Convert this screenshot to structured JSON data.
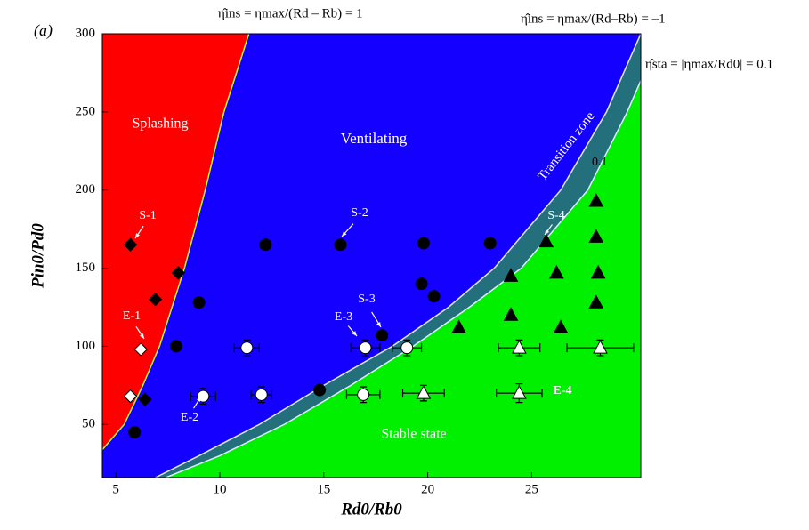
{
  "panel_label": "(a)",
  "chart_data": {
    "type": "scatter",
    "x_label": "Rd0/Rb0",
    "y_label": "Pin0/Pd0",
    "xlim": [
      4.35,
      30.25
    ],
    "ylim": [
      16,
      300
    ],
    "xticks": [
      5,
      10,
      15,
      20,
      25
    ],
    "yticks": [
      50,
      100,
      150,
      200,
      250,
      300
    ],
    "regions": [
      {
        "name": "Ventilating",
        "color": "#1400ff"
      },
      {
        "name": "Splashing",
        "color": "#ff0000"
      },
      {
        "name": "Transition zone",
        "color": "#23707c"
      },
      {
        "name": "Stable state",
        "color": "#00f000"
      }
    ],
    "boundaries": [
      {
        "label": "η̂ins = ηmax/(Rd – Rb) = 1",
        "x": [
          4.36,
          5.4,
          6.3,
          7.1,
          8.3,
          9.3,
          10.2,
          11.4
        ],
        "y": [
          34,
          50,
          75,
          100,
          150,
          200,
          250,
          300
        ]
      },
      {
        "label": "η̂ins = ηmax/(Rd–Rb) = –1",
        "x": [
          6.9,
          9,
          11.9,
          15,
          18.3,
          21,
          23.2,
          26.4,
          28.6,
          30.25
        ],
        "y": [
          16,
          30,
          50,
          75,
          100,
          125,
          150,
          200,
          250,
          300
        ]
      },
      {
        "label": "η̂sta = |ηmax/Rd0| = 0.1",
        "x": [
          7.4,
          10,
          13.1,
          16.3,
          19.3,
          22,
          24.5,
          27.7,
          29.6,
          30.25
        ],
        "y": [
          16,
          30,
          50,
          75,
          100,
          125,
          150,
          200,
          250,
          270
        ]
      }
    ],
    "contour_label": "0.1",
    "series": [
      {
        "marker": "diamond",
        "color": "#000000",
        "x": [
          5.7,
          8,
          6.9,
          6.4
        ],
        "y": [
          165,
          147,
          130,
          66
        ]
      },
      {
        "marker": "diamond",
        "color": "#ffffff",
        "x": [
          5.7,
          6.2
        ],
        "y": [
          68,
          98
        ]
      },
      {
        "marker": "circle",
        "color": "#000000",
        "x": [
          5.9,
          7.9,
          9,
          12.2,
          15.8,
          19.8,
          19.7,
          20.3,
          17.8,
          14.8,
          23
        ],
        "y": [
          45,
          100,
          128,
          165,
          165,
          166,
          140,
          132,
          107,
          72,
          166
        ]
      },
      {
        "marker": "circle",
        "color": "#ffffff",
        "x": [
          9.2,
          11.3,
          12,
          17,
          16.9,
          19
        ],
        "y": [
          68,
          99,
          69,
          99,
          69,
          99
        ],
        "xerr": [
          0.6,
          0.6,
          0.5,
          0.7,
          0.8,
          0.7
        ],
        "yerr": [
          5,
          5,
          5,
          5,
          5,
          5
        ]
      },
      {
        "marker": "triangle",
        "color": "#000000",
        "x": [
          21.5,
          24,
          24,
          25.7,
          26.2,
          26.4,
          28.1,
          28.1,
          28.2,
          28.1
        ],
        "y": [
          112,
          145,
          120,
          167,
          147,
          112,
          193,
          170,
          147,
          128
        ]
      },
      {
        "marker": "triangle",
        "color": "#ffffff",
        "x": [
          19.8,
          24.4,
          24.4,
          28.3
        ],
        "y": [
          70,
          99,
          70,
          99
        ],
        "xerr": [
          1,
          1,
          1.1,
          1.6
        ],
        "yerr": [
          5,
          5,
          6,
          5
        ]
      }
    ],
    "annotations": [
      "S-1",
      "S-2",
      "S-3",
      "S-4",
      "E-1",
      "E-2",
      "E-3",
      "E-4"
    ]
  }
}
